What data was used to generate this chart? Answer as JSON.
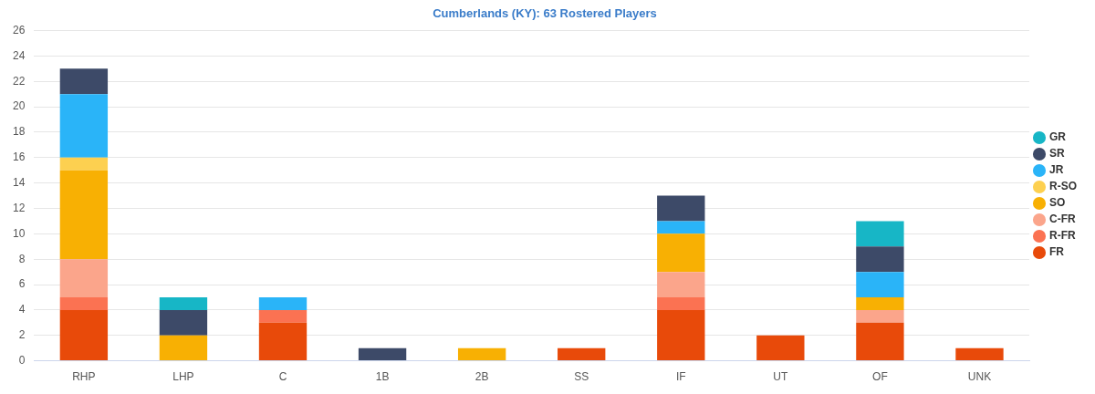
{
  "chart_data": {
    "type": "bar",
    "title": "Cumberlands (KY): 63 Rostered Players",
    "categories": [
      "RHP",
      "LHP",
      "C",
      "1B",
      "2B",
      "SS",
      "IF",
      "UT",
      "OF",
      "UNK"
    ],
    "stacked": true,
    "ylim": [
      0,
      26
    ],
    "yticks": [
      0,
      2,
      4,
      6,
      8,
      10,
      12,
      14,
      16,
      18,
      20,
      22,
      24,
      26
    ],
    "grid": "y",
    "legend": "right",
    "series": [
      {
        "name": "FR",
        "color": "#e84a0a",
        "values": [
          4,
          null,
          3,
          null,
          null,
          1,
          4,
          2,
          3,
          1
        ]
      },
      {
        "name": "R-FR",
        "color": "#fb7252",
        "values": [
          1,
          null,
          1,
          null,
          null,
          null,
          1,
          null,
          null,
          null
        ]
      },
      {
        "name": "C-FR",
        "color": "#fba58b",
        "values": [
          3,
          null,
          null,
          null,
          null,
          null,
          2,
          null,
          1,
          null
        ]
      },
      {
        "name": "SO",
        "color": "#f8b003",
        "values": [
          7,
          2,
          null,
          null,
          1,
          null,
          3,
          null,
          1,
          null
        ]
      },
      {
        "name": "R-SO",
        "color": "#fdd050",
        "values": [
          1,
          null,
          null,
          null,
          null,
          null,
          null,
          null,
          null,
          null
        ]
      },
      {
        "name": "JR",
        "color": "#2ab4f8",
        "values": [
          5,
          null,
          1,
          null,
          null,
          null,
          1,
          null,
          2,
          null
        ]
      },
      {
        "name": "SR",
        "color": "#3d4a68",
        "values": [
          2,
          2,
          null,
          1,
          null,
          null,
          2,
          null,
          2,
          null
        ]
      },
      {
        "name": "GR",
        "color": "#17b6c6",
        "values": [
          null,
          1,
          null,
          null,
          null,
          null,
          null,
          null,
          2,
          null
        ]
      }
    ]
  }
}
